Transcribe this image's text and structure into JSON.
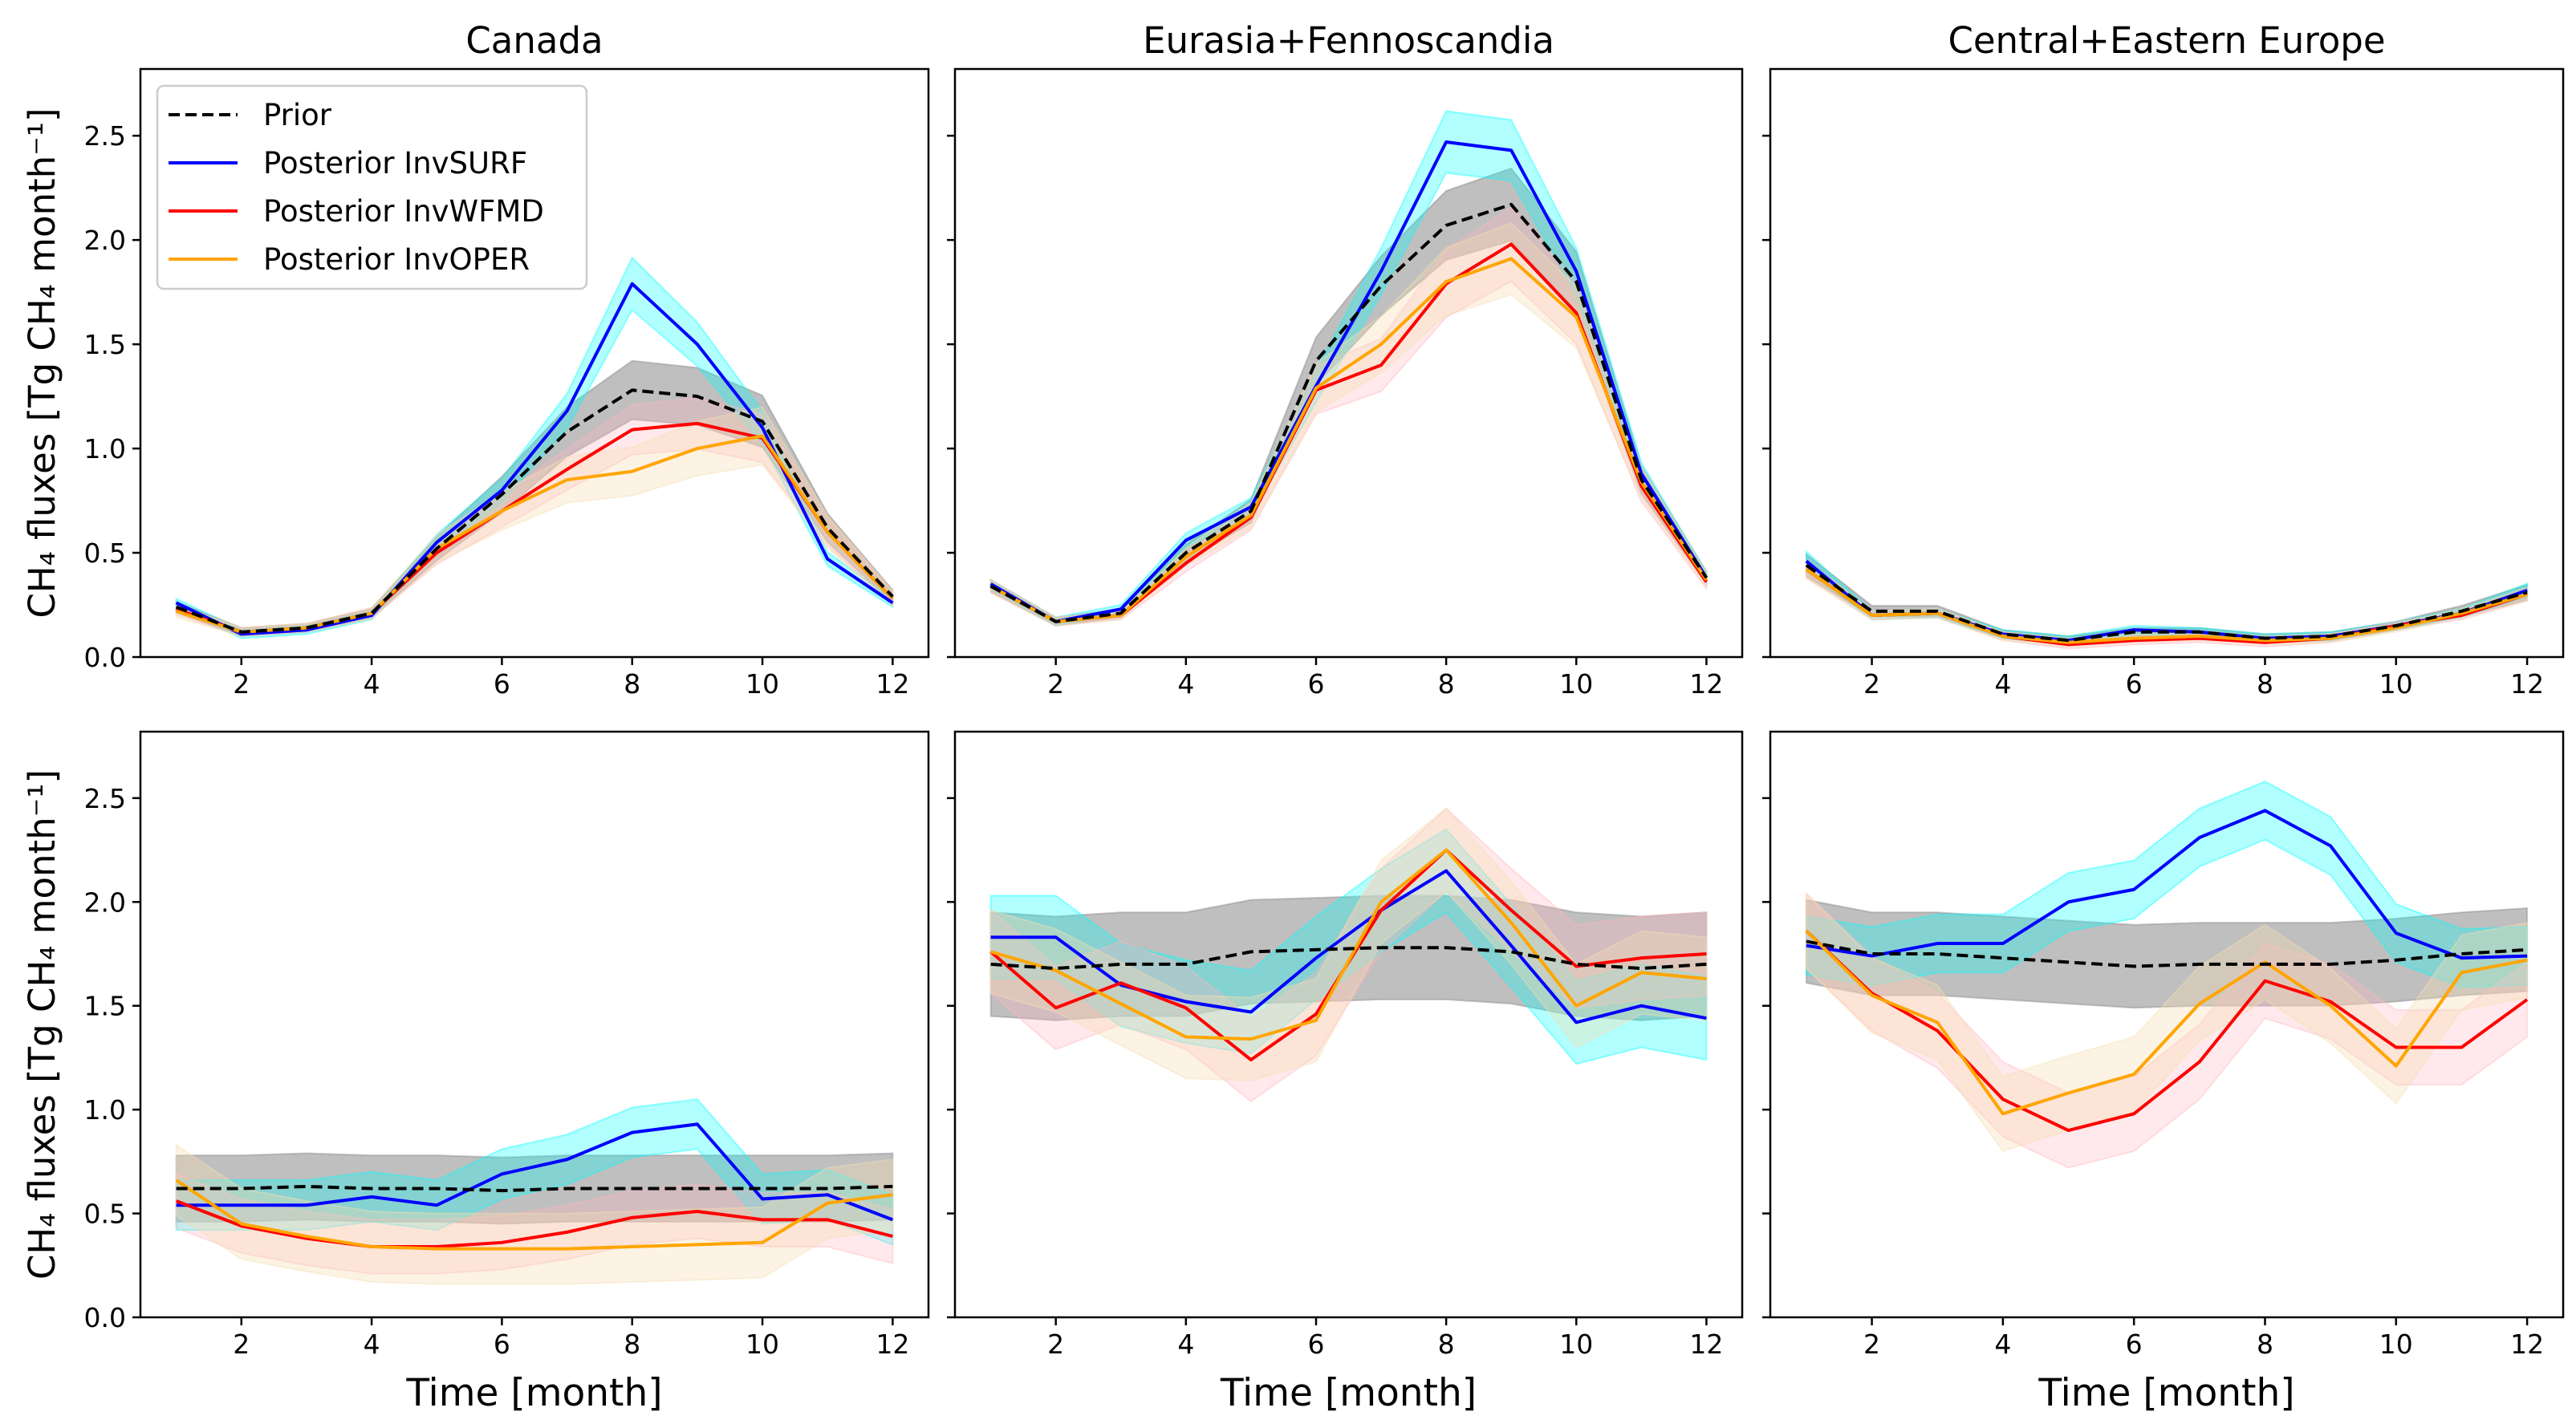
{
  "chart_data": {
    "type": "line",
    "xlabel": "Time [month]",
    "ylabel": "CH₄ fluxes [Tg CH₄ month⁻¹]",
    "x": [
      1,
      2,
      3,
      4,
      5,
      6,
      7,
      8,
      9,
      10,
      11,
      12
    ],
    "xlim": [
      0.45,
      12.55
    ],
    "ylim": [
      0,
      2.82
    ],
    "xticks": [
      2,
      4,
      6,
      8,
      10,
      12
    ],
    "yticks": [
      0.0,
      0.5,
      1.0,
      1.5,
      2.0,
      2.5
    ],
    "ytick_labels": [
      "0.0",
      "0.5",
      "1.0",
      "1.5",
      "2.0",
      "2.5"
    ],
    "legend": {
      "placement": "upper-left of first panel",
      "entries": [
        "Prior",
        "Posterior InvSURF",
        "Posterior InvWFMD",
        "Posterior InvOPER"
      ]
    },
    "series_style": [
      {
        "name": "Prior",
        "color": "#000000",
        "band": "#808080",
        "band_opacity": 0.5,
        "dashed": true
      },
      {
        "name": "Posterior InvSURF",
        "color": "#0000ff",
        "band": "#00ffff",
        "band_opacity": 0.3,
        "dashed": false
      },
      {
        "name": "Posterior InvWFMD",
        "color": "#ff0000",
        "band": "#ffb6c1",
        "band_opacity": 0.3,
        "dashed": false
      },
      {
        "name": "Posterior InvOPER",
        "color": "#ffa500",
        "band": "#f5deb3",
        "band_opacity": 0.35,
        "dashed": false
      }
    ],
    "panels": [
      {
        "title": "Canada",
        "row": 0,
        "col": 0,
        "uncertainty_mode": "relative",
        "uncertainty": [
          0.11,
          0.07,
          0.11,
          0.13
        ],
        "series": [
          [
            0.24,
            0.12,
            0.14,
            0.21,
            0.52,
            0.78,
            1.08,
            1.28,
            1.25,
            1.13,
            0.62,
            0.29
          ],
          [
            0.26,
            0.11,
            0.13,
            0.2,
            0.55,
            0.8,
            1.18,
            1.79,
            1.5,
            1.1,
            0.47,
            0.26
          ],
          [
            0.23,
            0.12,
            0.14,
            0.21,
            0.5,
            0.7,
            0.9,
            1.09,
            1.12,
            1.05,
            0.6,
            0.28
          ],
          [
            0.22,
            0.12,
            0.14,
            0.21,
            0.52,
            0.7,
            0.85,
            0.89,
            1.0,
            1.06,
            0.6,
            0.28
          ]
        ]
      },
      {
        "title": "Eurasia+Fennoscandia",
        "row": 0,
        "col": 1,
        "uncertainty_mode": "relative",
        "uncertainty": [
          0.08,
          0.06,
          0.09,
          0.09
        ],
        "series": [
          [
            0.34,
            0.17,
            0.21,
            0.5,
            0.7,
            1.42,
            1.78,
            2.07,
            2.17,
            1.8,
            0.85,
            0.38
          ],
          [
            0.35,
            0.17,
            0.23,
            0.56,
            0.72,
            1.3,
            1.85,
            2.47,
            2.43,
            1.85,
            0.88,
            0.38
          ],
          [
            0.34,
            0.17,
            0.2,
            0.45,
            0.67,
            1.28,
            1.4,
            1.79,
            1.98,
            1.65,
            0.82,
            0.36
          ],
          [
            0.34,
            0.17,
            0.2,
            0.48,
            0.68,
            1.29,
            1.5,
            1.8,
            1.91,
            1.63,
            0.84,
            0.37
          ]
        ]
      },
      {
        "title": "Central+Eastern Europe",
        "row": 0,
        "col": 2,
        "uncertainty_mode": "relative",
        "uncertainty": [
          0.12,
          0.1,
          0.1,
          0.1
        ],
        "series": [
          [
            0.44,
            0.22,
            0.22,
            0.11,
            0.08,
            0.12,
            0.12,
            0.09,
            0.1,
            0.15,
            0.22,
            0.31
          ],
          [
            0.46,
            0.2,
            0.21,
            0.11,
            0.08,
            0.13,
            0.12,
            0.09,
            0.1,
            0.15,
            0.21,
            0.32
          ],
          [
            0.42,
            0.2,
            0.21,
            0.1,
            0.06,
            0.08,
            0.09,
            0.07,
            0.09,
            0.15,
            0.2,
            0.3
          ],
          [
            0.42,
            0.2,
            0.21,
            0.1,
            0.07,
            0.09,
            0.1,
            0.08,
            0.09,
            0.14,
            0.21,
            0.3
          ]
        ]
      },
      {
        "title": "",
        "row": 1,
        "col": 0,
        "uncertainty_mode": "absolute",
        "uncertainty": [
          0.16,
          0.12,
          0.13,
          0.17
        ],
        "series": [
          [
            0.62,
            0.62,
            0.63,
            0.62,
            0.62,
            0.61,
            0.62,
            0.62,
            0.62,
            0.62,
            0.62,
            0.63
          ],
          [
            0.54,
            0.54,
            0.54,
            0.58,
            0.54,
            0.69,
            0.76,
            0.89,
            0.93,
            0.57,
            0.59,
            0.47
          ],
          [
            0.56,
            0.44,
            0.38,
            0.34,
            0.34,
            0.36,
            0.41,
            0.48,
            0.51,
            0.47,
            0.47,
            0.39
          ],
          [
            0.66,
            0.45,
            0.39,
            0.34,
            0.33,
            0.33,
            0.33,
            0.34,
            0.35,
            0.36,
            0.55,
            0.59
          ]
        ]
      },
      {
        "title": "",
        "row": 1,
        "col": 1,
        "uncertainty_mode": "absolute",
        "uncertainty": [
          0.25,
          0.2,
          0.2,
          0.2
        ],
        "series": [
          [
            1.7,
            1.68,
            1.7,
            1.7,
            1.76,
            1.77,
            1.78,
            1.78,
            1.76,
            1.7,
            1.68,
            1.7
          ],
          [
            1.83,
            1.83,
            1.6,
            1.52,
            1.47,
            1.73,
            1.96,
            2.15,
            1.79,
            1.42,
            1.5,
            1.44
          ],
          [
            1.76,
            1.49,
            1.61,
            1.49,
            1.24,
            1.46,
            1.96,
            2.25,
            1.96,
            1.69,
            1.73,
            1.75
          ],
          [
            1.76,
            1.67,
            1.51,
            1.35,
            1.34,
            1.43,
            2.0,
            2.25,
            1.9,
            1.5,
            1.66,
            1.63
          ]
        ]
      },
      {
        "title": "",
        "row": 1,
        "col": 2,
        "uncertainty_mode": "absolute",
        "uncertainty": [
          0.2,
          0.14,
          0.18,
          0.18
        ],
        "series": [
          [
            1.81,
            1.75,
            1.75,
            1.73,
            1.71,
            1.69,
            1.7,
            1.7,
            1.7,
            1.72,
            1.75,
            1.77
          ],
          [
            1.79,
            1.74,
            1.8,
            1.8,
            2.0,
            2.06,
            2.31,
            2.44,
            2.27,
            1.85,
            1.73,
            1.74
          ],
          [
            1.86,
            1.56,
            1.38,
            1.05,
            0.9,
            0.98,
            1.23,
            1.62,
            1.52,
            1.3,
            1.3,
            1.53
          ],
          [
            1.86,
            1.55,
            1.42,
            0.98,
            1.08,
            1.17,
            1.51,
            1.71,
            1.5,
            1.21,
            1.66,
            1.72
          ]
        ]
      }
    ]
  }
}
